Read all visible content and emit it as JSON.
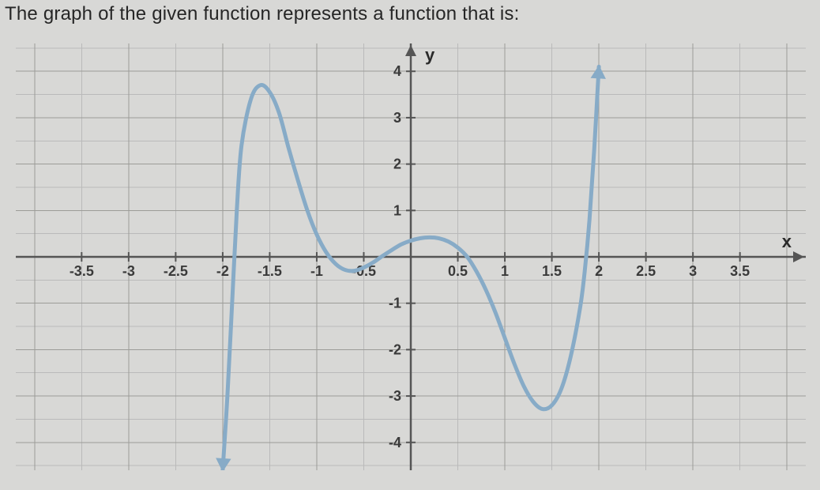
{
  "title_text": "The graph of the given function represents a function that is:",
  "chart": {
    "type": "line",
    "background_color": "#d8d8d6",
    "axis_color": "#555555",
    "grid_major_color": "#9c9c98",
    "grid_minor_color": "#bababa",
    "curve_color": "#87abc7",
    "tick_label_color": "#3a3a3a",
    "xlim": [
      -4.2,
      4.2
    ],
    "ylim": [
      -4.6,
      4.6
    ],
    "x_tick_step_major": 1.0,
    "x_tick_step_minor": 0.5,
    "y_tick_step_major": 1.0,
    "y_tick_step_minor": 0.5,
    "x_label": "x",
    "y_label": "y",
    "x_tick_labels": [
      "-3.5",
      "-3",
      "-2.5",
      "-2",
      "-1.5",
      "-1",
      "-0.5",
      "0.5",
      "1",
      "1.5",
      "2",
      "2.5",
      "3",
      "3.5"
    ],
    "x_tick_positions": [
      -3.5,
      -3,
      -2.5,
      -2,
      -1.5,
      -1,
      -0.5,
      0.5,
      1,
      1.5,
      2,
      2.5,
      3,
      3.5
    ],
    "y_tick_labels": [
      "-4",
      "-3",
      "-2",
      "-1",
      "1",
      "2",
      "3",
      "4"
    ],
    "y_tick_positions": [
      -4,
      -3,
      -2,
      -1,
      1,
      2,
      3,
      4
    ],
    "curve_points": [
      [
        -2.0,
        -4.6
      ],
      [
        -1.95,
        -3.0
      ],
      [
        -1.9,
        -1.0
      ],
      [
        -1.85,
        1.0
      ],
      [
        -1.8,
        2.4
      ],
      [
        -1.7,
        3.4
      ],
      [
        -1.6,
        3.7
      ],
      [
        -1.5,
        3.55
      ],
      [
        -1.4,
        3.1
      ],
      [
        -1.3,
        2.35
      ],
      [
        -1.2,
        1.65
      ],
      [
        -1.1,
        1.0
      ],
      [
        -1.0,
        0.48
      ],
      [
        -0.9,
        0.1
      ],
      [
        -0.8,
        -0.15
      ],
      [
        -0.7,
        -0.28
      ],
      [
        -0.6,
        -0.3
      ],
      [
        -0.5,
        -0.23
      ],
      [
        -0.4,
        -0.12
      ],
      [
        -0.3,
        0.02
      ],
      [
        -0.2,
        0.15
      ],
      [
        -0.1,
        0.27
      ],
      [
        0.0,
        0.35
      ],
      [
        0.1,
        0.4
      ],
      [
        0.2,
        0.42
      ],
      [
        0.3,
        0.4
      ],
      [
        0.4,
        0.33
      ],
      [
        0.5,
        0.2
      ],
      [
        0.6,
        0.0
      ],
      [
        0.7,
        -0.32
      ],
      [
        0.8,
        -0.72
      ],
      [
        0.9,
        -1.2
      ],
      [
        1.0,
        -1.75
      ],
      [
        1.1,
        -2.3
      ],
      [
        1.2,
        -2.78
      ],
      [
        1.3,
        -3.12
      ],
      [
        1.4,
        -3.28
      ],
      [
        1.5,
        -3.2
      ],
      [
        1.6,
        -2.85
      ],
      [
        1.7,
        -2.15
      ],
      [
        1.8,
        -1.1
      ],
      [
        1.85,
        -0.3
      ],
      [
        1.9,
        0.8
      ],
      [
        1.95,
        2.3
      ],
      [
        2.0,
        4.1
      ]
    ],
    "arrow_start_dir": "down",
    "arrow_end_dir": "up"
  }
}
